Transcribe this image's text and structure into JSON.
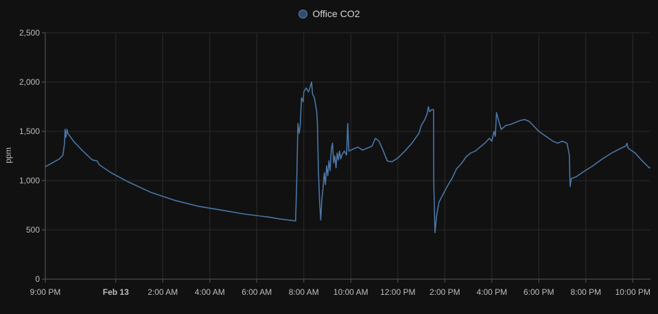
{
  "chart_data": {
    "type": "line",
    "title": "",
    "xlabel": "",
    "ylabel": "ppm",
    "ylim": [
      0,
      2500
    ],
    "yticks": [
      0,
      500,
      1000,
      1500,
      2000,
      2500
    ],
    "ytick_labels": [
      "0",
      "500",
      "1,000",
      "1,500",
      "2,000",
      "2,500"
    ],
    "xlim": [
      "21:00",
      "24h45"
    ],
    "xticks": [
      {
        "label": "9:00 PM",
        "hours": 0,
        "bold": false
      },
      {
        "label": "Feb 13",
        "hours": 3,
        "bold": true
      },
      {
        "label": "2:00 AM",
        "hours": 5,
        "bold": false
      },
      {
        "label": "4:00 AM",
        "hours": 7,
        "bold": false
      },
      {
        "label": "6:00 AM",
        "hours": 9,
        "bold": false
      },
      {
        "label": "8:00 AM",
        "hours": 11,
        "bold": false
      },
      {
        "label": "10:00 AM",
        "hours": 13,
        "bold": false
      },
      {
        "label": "12:00 PM",
        "hours": 15,
        "bold": false
      },
      {
        "label": "2:00 PM",
        "hours": 17,
        "bold": false
      },
      {
        "label": "4:00 PM",
        "hours": 19,
        "bold": false
      },
      {
        "label": "6:00 PM",
        "hours": 21,
        "bold": false
      },
      {
        "label": "8:00 PM",
        "hours": 23,
        "bold": false
      },
      {
        "label": "10:00 PM",
        "hours": 25,
        "bold": false
      }
    ],
    "grid": true,
    "legend_position": "top-center",
    "series": [
      {
        "name": "Office CO2",
        "color": "#4a77a8",
        "points": [
          [
            0.0,
            1140
          ],
          [
            0.3,
            1180
          ],
          [
            0.6,
            1220
          ],
          [
            0.75,
            1260
          ],
          [
            0.82,
            1380
          ],
          [
            0.84,
            1520
          ],
          [
            0.88,
            1440
          ],
          [
            0.92,
            1520
          ],
          [
            0.96,
            1480
          ],
          [
            1.2,
            1400
          ],
          [
            1.6,
            1300
          ],
          [
            2.0,
            1210
          ],
          [
            2.2,
            1200
          ],
          [
            2.3,
            1160
          ],
          [
            2.8,
            1080
          ],
          [
            3.5,
            990
          ],
          [
            4.5,
            880
          ],
          [
            5.5,
            800
          ],
          [
            6.5,
            740
          ],
          [
            7.5,
            700
          ],
          [
            8.5,
            660
          ],
          [
            9.5,
            630
          ],
          [
            10.0,
            610
          ],
          [
            10.5,
            595
          ],
          [
            10.65,
            590
          ],
          [
            10.7,
            1000
          ],
          [
            10.75,
            1580
          ],
          [
            10.8,
            1480
          ],
          [
            10.85,
            1560
          ],
          [
            10.9,
            1840
          ],
          [
            10.97,
            1800
          ],
          [
            11.0,
            1900
          ],
          [
            11.1,
            1940
          ],
          [
            11.2,
            1900
          ],
          [
            11.27,
            1950
          ],
          [
            11.33,
            2000
          ],
          [
            11.37,
            1880
          ],
          [
            11.45,
            1840
          ],
          [
            11.55,
            1700
          ],
          [
            11.58,
            1580
          ],
          [
            11.62,
            1120
          ],
          [
            11.67,
            800
          ],
          [
            11.72,
            600
          ],
          [
            11.77,
            820
          ],
          [
            11.82,
            930
          ],
          [
            11.87,
            1080
          ],
          [
            11.92,
            960
          ],
          [
            11.97,
            1150
          ],
          [
            12.02,
            1050
          ],
          [
            12.07,
            1200
          ],
          [
            12.12,
            1100
          ],
          [
            12.17,
            1320
          ],
          [
            12.22,
            1380
          ],
          [
            12.27,
            1180
          ],
          [
            12.32,
            1250
          ],
          [
            12.37,
            1130
          ],
          [
            12.42,
            1280
          ],
          [
            12.47,
            1210
          ],
          [
            12.52,
            1300
          ],
          [
            12.57,
            1220
          ],
          [
            12.62,
            1260
          ],
          [
            12.72,
            1300
          ],
          [
            12.82,
            1260
          ],
          [
            12.87,
            1580
          ],
          [
            12.92,
            1300
          ],
          [
            13.1,
            1320
          ],
          [
            13.3,
            1340
          ],
          [
            13.5,
            1310
          ],
          [
            13.7,
            1330
          ],
          [
            13.9,
            1350
          ],
          [
            14.05,
            1430
          ],
          [
            14.2,
            1400
          ],
          [
            14.35,
            1320
          ],
          [
            14.55,
            1200
          ],
          [
            14.75,
            1190
          ],
          [
            15.0,
            1230
          ],
          [
            15.3,
            1300
          ],
          [
            15.6,
            1380
          ],
          [
            15.9,
            1480
          ],
          [
            16.0,
            1560
          ],
          [
            16.15,
            1620
          ],
          [
            16.25,
            1680
          ],
          [
            16.3,
            1750
          ],
          [
            16.35,
            1700
          ],
          [
            16.45,
            1720
          ],
          [
            16.52,
            1720
          ],
          [
            16.53,
            1000
          ],
          [
            16.58,
            470
          ],
          [
            16.65,
            640
          ],
          [
            16.75,
            780
          ],
          [
            16.9,
            850
          ],
          [
            17.1,
            940
          ],
          [
            17.3,
            1020
          ],
          [
            17.5,
            1120
          ],
          [
            17.7,
            1170
          ],
          [
            17.9,
            1240
          ],
          [
            18.1,
            1280
          ],
          [
            18.3,
            1300
          ],
          [
            18.5,
            1340
          ],
          [
            18.7,
            1380
          ],
          [
            18.9,
            1430
          ],
          [
            19.0,
            1400
          ],
          [
            19.1,
            1500
          ],
          [
            19.15,
            1450
          ],
          [
            19.2,
            1690
          ],
          [
            19.3,
            1600
          ],
          [
            19.4,
            1520
          ],
          [
            19.6,
            1560
          ],
          [
            19.8,
            1570
          ],
          [
            20.0,
            1590
          ],
          [
            20.2,
            1610
          ],
          [
            20.4,
            1620
          ],
          [
            20.6,
            1600
          ],
          [
            20.8,
            1550
          ],
          [
            21.0,
            1500
          ],
          [
            21.3,
            1450
          ],
          [
            21.6,
            1400
          ],
          [
            21.8,
            1380
          ],
          [
            22.0,
            1400
          ],
          [
            22.2,
            1380
          ],
          [
            22.3,
            1260
          ],
          [
            22.33,
            940
          ],
          [
            22.38,
            1020
          ],
          [
            22.6,
            1040
          ],
          [
            22.9,
            1090
          ],
          [
            23.3,
            1150
          ],
          [
            23.7,
            1220
          ],
          [
            24.1,
            1280
          ],
          [
            24.5,
            1330
          ],
          [
            24.7,
            1350
          ],
          [
            24.75,
            1380
          ],
          [
            24.8,
            1330
          ],
          [
            25.1,
            1280
          ],
          [
            25.4,
            1200
          ],
          [
            25.7,
            1130
          ],
          [
            25.75,
            1130
          ]
        ]
      }
    ]
  }
}
